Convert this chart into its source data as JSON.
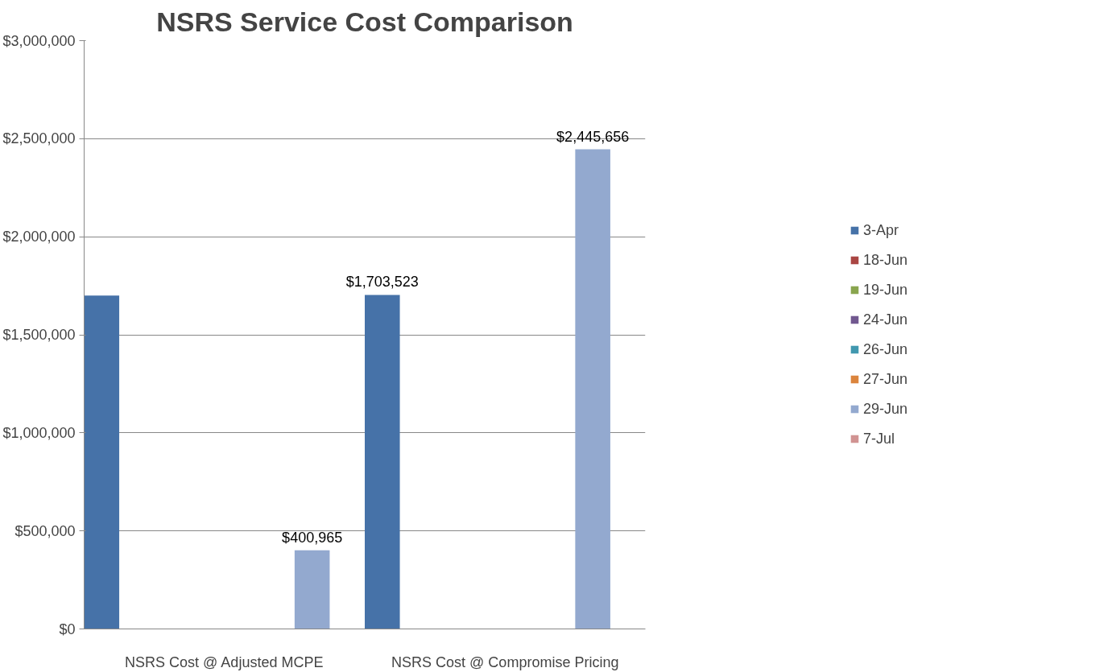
{
  "chart_data": {
    "type": "bar",
    "title": "NSRS Service Cost Comparison",
    "categories": [
      "NSRS Cost @ Adjusted MCPE",
      "NSRS Cost @ Compromise Pricing"
    ],
    "series": [
      {
        "name": "3-Apr",
        "color": "#4672a8",
        "values": [
          1700000,
          1703523
        ],
        "value_labels": [
          null,
          "$1,703,523"
        ]
      },
      {
        "name": "18-Jun",
        "color": "#aa4643",
        "values": [
          null,
          null
        ]
      },
      {
        "name": "19-Jun",
        "color": "#89a54e",
        "values": [
          null,
          null
        ]
      },
      {
        "name": "24-Jun",
        "color": "#71588f",
        "values": [
          null,
          null
        ]
      },
      {
        "name": "26-Jun",
        "color": "#4198af",
        "values": [
          null,
          null
        ]
      },
      {
        "name": "27-Jun",
        "color": "#db843d",
        "values": [
          null,
          null
        ]
      },
      {
        "name": "29-Jun",
        "color": "#93a9cf",
        "values": [
          400965,
          2445656
        ],
        "value_labels": [
          "$400,965",
          "$2,445,656"
        ]
      },
      {
        "name": "7-Jul",
        "color": "#d19392",
        "values": [
          null,
          null
        ]
      }
    ],
    "ylim": [
      0,
      3000000
    ],
    "yticks": [
      {
        "value": 0,
        "label": "$0"
      },
      {
        "value": 500000,
        "label": "$500,000"
      },
      {
        "value": 1000000,
        "label": "$1,000,000"
      },
      {
        "value": 1500000,
        "label": "$1,500,000"
      },
      {
        "value": 2000000,
        "label": "$2,000,000"
      },
      {
        "value": 2500000,
        "label": "$2,500,000"
      },
      {
        "value": 3000000,
        "label": "$3,000,000"
      }
    ],
    "grid": "y",
    "legend": "right"
  }
}
